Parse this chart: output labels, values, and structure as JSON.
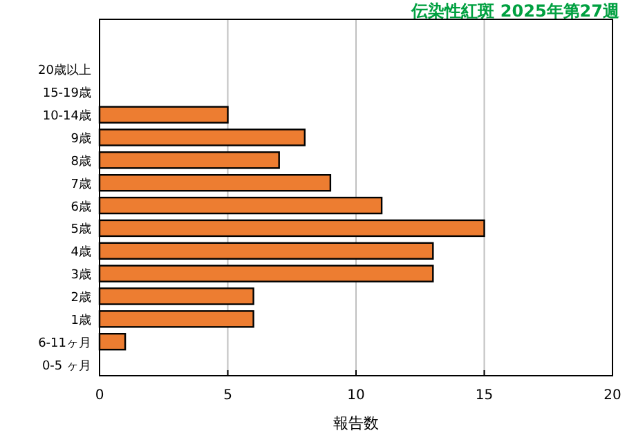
{
  "chart_data": {
    "type": "bar",
    "orientation": "horizontal",
    "title": "伝染性紅斑 2025年第27週",
    "xlabel": "報告数",
    "categories": [
      "20歳以上",
      "15-19歳",
      "10-14歳",
      "9歳",
      "8歳",
      "7歳",
      "6歳",
      "5歳",
      "4歳",
      "3歳",
      "2歳",
      "1歳",
      "6-11ヶ月",
      "0-5 ヶ月"
    ],
    "values": [
      0,
      0,
      5,
      8,
      7,
      9,
      11,
      15,
      13,
      13,
      6,
      6,
      1,
      0
    ],
    "color": "#ed7d31",
    "xlim": [
      0,
      20
    ],
    "xticks": [
      0,
      5,
      10,
      15,
      20
    ],
    "grid": "x"
  }
}
